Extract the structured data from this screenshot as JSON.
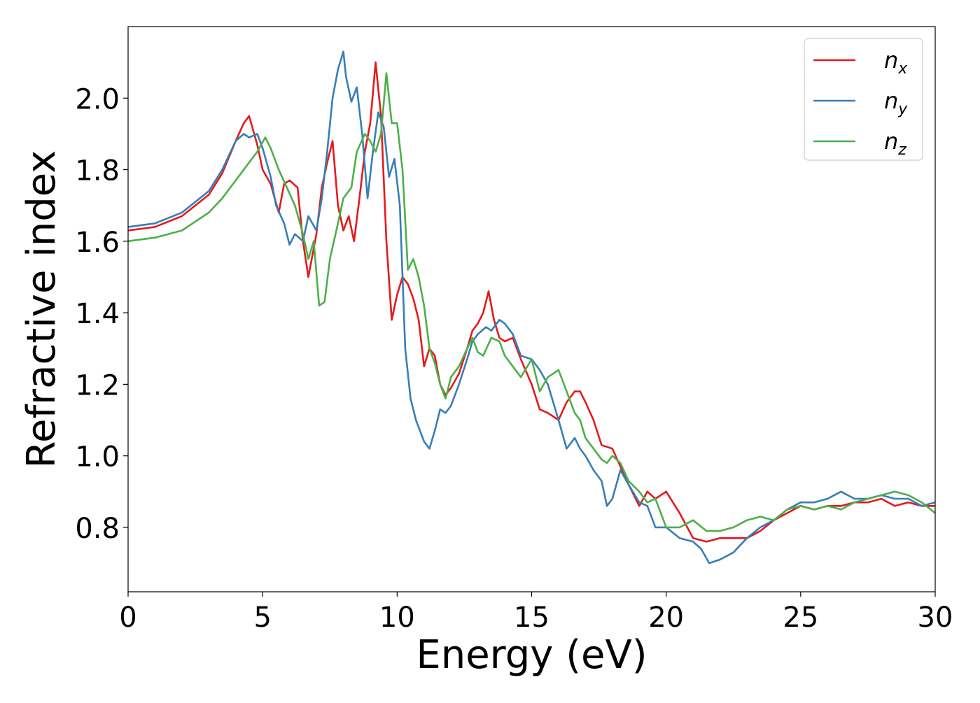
{
  "chart_data": {
    "type": "line",
    "xlabel": "Energy (eV)",
    "ylabel": "Refractive index",
    "xlim": [
      0,
      30
    ],
    "ylim": [
      0.62,
      2.2
    ],
    "xticks": [
      0,
      5,
      10,
      15,
      20,
      25,
      30
    ],
    "xtick_labels": [
      "0",
      "5",
      "10",
      "15",
      "20",
      "25",
      "30"
    ],
    "yticks": [
      0.8,
      1.0,
      1.2,
      1.4,
      1.6,
      1.8,
      2.0
    ],
    "ytick_labels": [
      "0.8",
      "1.0",
      "1.2",
      "1.4",
      "1.6",
      "1.8",
      "2.0"
    ],
    "grid": false,
    "legend": {
      "position": "top-right"
    },
    "series": [
      {
        "name": "n_x",
        "base": "n",
        "sub": "x",
        "color": "#e41a1c",
        "x": [
          0,
          1,
          2,
          3,
          3.5,
          4,
          4.3,
          4.5,
          4.8,
          5.0,
          5.3,
          5.6,
          5.8,
          6.0,
          6.3,
          6.5,
          6.7,
          7.0,
          7.2,
          7.4,
          7.6,
          7.8,
          8.0,
          8.2,
          8.4,
          8.6,
          8.8,
          9.0,
          9.2,
          9.4,
          9.6,
          9.8,
          10.0,
          10.2,
          10.4,
          10.6,
          10.8,
          11.0,
          11.2,
          11.4,
          11.6,
          11.8,
          12.0,
          12.3,
          12.6,
          12.8,
          13.0,
          13.2,
          13.4,
          13.6,
          13.8,
          14.0,
          14.3,
          14.6,
          15.0,
          15.3,
          15.6,
          16.0,
          16.3,
          16.6,
          16.8,
          17.0,
          17.3,
          17.6,
          18.0,
          18.3,
          18.6,
          19.0,
          19.3,
          19.6,
          20.0,
          20.5,
          21.0,
          21.5,
          22.0,
          22.5,
          23.0,
          23.5,
          24.0,
          24.5,
          25.0,
          25.5,
          26.0,
          26.5,
          27.0,
          27.5,
          28.0,
          28.5,
          29.0,
          29.5,
          30.0
        ],
        "y": [
          1.63,
          1.64,
          1.67,
          1.73,
          1.79,
          1.88,
          1.93,
          1.95,
          1.87,
          1.8,
          1.76,
          1.68,
          1.76,
          1.77,
          1.75,
          1.6,
          1.5,
          1.62,
          1.75,
          1.82,
          1.88,
          1.7,
          1.63,
          1.67,
          1.6,
          1.72,
          1.85,
          1.93,
          2.1,
          1.95,
          1.6,
          1.38,
          1.45,
          1.5,
          1.48,
          1.44,
          1.38,
          1.25,
          1.3,
          1.28,
          1.2,
          1.17,
          1.19,
          1.23,
          1.3,
          1.35,
          1.37,
          1.4,
          1.46,
          1.38,
          1.33,
          1.32,
          1.33,
          1.27,
          1.2,
          1.13,
          1.12,
          1.1,
          1.15,
          1.18,
          1.18,
          1.15,
          1.1,
          1.03,
          1.02,
          0.97,
          0.92,
          0.86,
          0.9,
          0.88,
          0.9,
          0.84,
          0.77,
          0.76,
          0.77,
          0.77,
          0.77,
          0.79,
          0.82,
          0.84,
          0.86,
          0.85,
          0.86,
          0.86,
          0.87,
          0.87,
          0.88,
          0.86,
          0.87,
          0.86,
          0.86
        ]
      },
      {
        "name": "n_y",
        "base": "n",
        "sub": "y",
        "color": "#377eb8",
        "x": [
          0,
          1,
          2,
          3,
          3.5,
          4,
          4.3,
          4.5,
          4.8,
          5.0,
          5.3,
          5.5,
          5.8,
          6.0,
          6.2,
          6.5,
          6.7,
          7.0,
          7.2,
          7.4,
          7.6,
          7.8,
          8.0,
          8.1,
          8.3,
          8.5,
          8.7,
          8.9,
          9.1,
          9.3,
          9.5,
          9.7,
          9.9,
          10.1,
          10.3,
          10.5,
          10.7,
          11.0,
          11.2,
          11.4,
          11.6,
          11.8,
          12.0,
          12.3,
          12.6,
          12.8,
          13.0,
          13.3,
          13.5,
          13.8,
          14.0,
          14.3,
          14.6,
          15.0,
          15.3,
          15.6,
          16.0,
          16.3,
          16.6,
          16.8,
          17.0,
          17.3,
          17.6,
          17.8,
          18.0,
          18.3,
          18.6,
          19.0,
          19.3,
          19.6,
          20.0,
          20.5,
          21.0,
          21.3,
          21.6,
          22.0,
          22.5,
          23.0,
          23.5,
          24.0,
          24.5,
          25.0,
          25.5,
          26.0,
          26.5,
          27.0,
          27.5,
          28.0,
          28.5,
          29.0,
          29.5,
          30.0
        ],
        "y": [
          1.64,
          1.65,
          1.68,
          1.74,
          1.8,
          1.88,
          1.9,
          1.89,
          1.9,
          1.86,
          1.78,
          1.7,
          1.65,
          1.59,
          1.62,
          1.6,
          1.67,
          1.63,
          1.72,
          1.85,
          2.0,
          2.08,
          2.13,
          2.06,
          1.99,
          2.03,
          1.9,
          1.72,
          1.85,
          1.96,
          1.92,
          1.78,
          1.83,
          1.7,
          1.3,
          1.16,
          1.1,
          1.04,
          1.02,
          1.07,
          1.13,
          1.12,
          1.14,
          1.2,
          1.27,
          1.32,
          1.34,
          1.36,
          1.35,
          1.38,
          1.37,
          1.34,
          1.28,
          1.27,
          1.24,
          1.2,
          1.1,
          1.02,
          1.05,
          1.02,
          1.0,
          0.96,
          0.93,
          0.86,
          0.88,
          0.96,
          0.92,
          0.87,
          0.86,
          0.8,
          0.8,
          0.77,
          0.76,
          0.74,
          0.7,
          0.71,
          0.73,
          0.77,
          0.8,
          0.82,
          0.85,
          0.87,
          0.87,
          0.88,
          0.9,
          0.88,
          0.88,
          0.89,
          0.88,
          0.88,
          0.86,
          0.87
        ]
      },
      {
        "name": "n_z",
        "base": "n",
        "sub": "z",
        "color": "#4daf4a",
        "x": [
          0,
          1,
          2,
          3,
          3.5,
          4,
          4.5,
          4.8,
          5.1,
          5.3,
          5.6,
          5.9,
          6.2,
          6.5,
          6.7,
          6.9,
          7.1,
          7.3,
          7.5,
          7.8,
          8.0,
          8.3,
          8.5,
          8.8,
          9.0,
          9.2,
          9.4,
          9.6,
          9.8,
          10.0,
          10.2,
          10.4,
          10.6,
          10.8,
          11.0,
          11.2,
          11.4,
          11.6,
          11.8,
          12.0,
          12.3,
          12.6,
          12.8,
          13.0,
          13.2,
          13.5,
          13.8,
          14.0,
          14.3,
          14.6,
          15.0,
          15.3,
          15.6,
          16.0,
          16.3,
          16.6,
          16.8,
          17.0,
          17.3,
          17.6,
          17.8,
          18.0,
          18.3,
          18.6,
          19.0,
          19.3,
          19.6,
          20.0,
          20.5,
          21.0,
          21.5,
          22.0,
          22.5,
          23.0,
          23.5,
          24.0,
          24.5,
          25.0,
          25.5,
          26.0,
          26.5,
          27.0,
          27.5,
          28.0,
          28.5,
          29.0,
          29.5,
          30.0
        ],
        "y": [
          1.6,
          1.61,
          1.63,
          1.68,
          1.72,
          1.77,
          1.82,
          1.85,
          1.89,
          1.86,
          1.8,
          1.75,
          1.7,
          1.62,
          1.55,
          1.6,
          1.42,
          1.43,
          1.55,
          1.65,
          1.72,
          1.75,
          1.85,
          1.9,
          1.88,
          1.85,
          1.9,
          2.07,
          1.93,
          1.93,
          1.8,
          1.52,
          1.55,
          1.5,
          1.42,
          1.3,
          1.26,
          1.2,
          1.16,
          1.22,
          1.25,
          1.3,
          1.33,
          1.29,
          1.28,
          1.33,
          1.32,
          1.28,
          1.25,
          1.22,
          1.27,
          1.18,
          1.22,
          1.24,
          1.18,
          1.12,
          1.1,
          1.05,
          1.02,
          0.99,
          0.98,
          1.0,
          0.98,
          0.93,
          0.9,
          0.87,
          0.88,
          0.8,
          0.8,
          0.82,
          0.79,
          0.79,
          0.8,
          0.82,
          0.83,
          0.82,
          0.85,
          0.86,
          0.85,
          0.86,
          0.85,
          0.87,
          0.88,
          0.89,
          0.9,
          0.89,
          0.87,
          0.84
        ]
      }
    ]
  }
}
